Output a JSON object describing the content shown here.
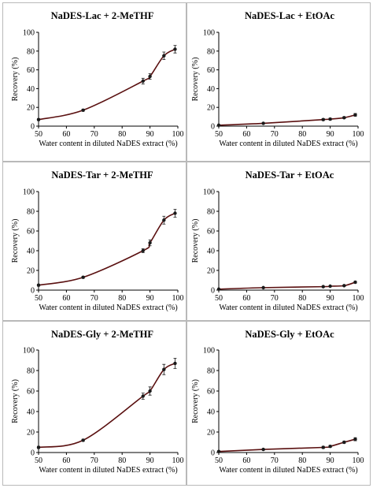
{
  "chart_data": [
    {
      "type": "line",
      "title": "NaDES-Lac + 2-MeTHF",
      "xlabel": "Water content in diluted NaDES extract (%)",
      "ylabel": "Recovery (%)",
      "xlim": [
        50,
        100
      ],
      "ylim": [
        0,
        100
      ],
      "xticks": [
        50,
        60,
        70,
        80,
        90,
        100
      ],
      "yticks": [
        0,
        20,
        40,
        60,
        80,
        100
      ],
      "grid": false,
      "series": [
        {
          "x": [
            50,
            66,
            87.5,
            90,
            95,
            99
          ],
          "y": [
            7,
            17,
            48,
            53,
            75,
            82
          ],
          "err": [
            1,
            1,
            3,
            3,
            4,
            4
          ]
        }
      ]
    },
    {
      "type": "line",
      "title": "NaDES-Lac + EtOAc",
      "xlabel": "Water content in diluted NaDES extract (%)",
      "ylabel": "Recovery (%)",
      "xlim": [
        50,
        100
      ],
      "ylim": [
        0,
        100
      ],
      "xticks": [
        50,
        60,
        70,
        80,
        90,
        100
      ],
      "yticks": [
        0,
        20,
        40,
        60,
        80,
        100
      ],
      "grid": false,
      "series": [
        {
          "x": [
            50,
            66,
            87.5,
            90,
            95,
            99
          ],
          "y": [
            1,
            3,
            7,
            7.5,
            9,
            12
          ],
          "err": [
            0.5,
            0.5,
            1,
            1,
            1,
            1.5
          ]
        }
      ]
    },
    {
      "type": "line",
      "title": "NaDES-Tar + 2-MeTHF",
      "xlabel": "Water content in diluted NaDES extract (%)",
      "ylabel": "Recovery (%)",
      "xlim": [
        50,
        100
      ],
      "ylim": [
        0,
        100
      ],
      "xticks": [
        50,
        60,
        70,
        80,
        90,
        100
      ],
      "yticks": [
        0,
        20,
        40,
        60,
        80,
        100
      ],
      "grid": false,
      "series": [
        {
          "x": [
            50,
            66,
            87.5,
            90,
            95,
            99
          ],
          "y": [
            5,
            13,
            40,
            48,
            71,
            78
          ],
          "err": [
            1,
            1,
            2,
            3,
            4,
            4
          ]
        }
      ]
    },
    {
      "type": "line",
      "title": "NaDES-Tar + EtOAc",
      "xlabel": "Water content in diluted NaDES extract (%)",
      "ylabel": "Recovery (%)",
      "xlim": [
        50,
        100
      ],
      "ylim": [
        0,
        100
      ],
      "xticks": [
        50,
        60,
        70,
        80,
        90,
        100
      ],
      "yticks": [
        0,
        20,
        40,
        60,
        80,
        100
      ],
      "grid": false,
      "series": [
        {
          "x": [
            50,
            66,
            87.5,
            90,
            95,
            99
          ],
          "y": [
            1,
            2.5,
            3.5,
            4,
            4.5,
            8
          ],
          "err": [
            0.3,
            0.5,
            0.5,
            0.5,
            0.7,
            1
          ]
        }
      ]
    },
    {
      "type": "line",
      "title": "NaDES-Gly + 2-MeTHF",
      "xlabel": "Water content in diluted NaDES extract (%)",
      "ylabel": "Recovery (%)",
      "xlim": [
        50,
        100
      ],
      "ylim": [
        0,
        100
      ],
      "xticks": [
        50,
        60,
        70,
        80,
        90,
        100
      ],
      "yticks": [
        0,
        20,
        40,
        60,
        80,
        100
      ],
      "grid": false,
      "series": [
        {
          "x": [
            50,
            66,
            87.5,
            90,
            95,
            99
          ],
          "y": [
            5,
            12,
            55,
            60,
            81,
            87
          ],
          "err": [
            1,
            1,
            3,
            4,
            5,
            5
          ]
        }
      ]
    },
    {
      "type": "line",
      "title": "NaDES-Gly + EtOAc",
      "xlabel": "Water content in diluted NaDES extract (%)",
      "ylabel": "Recovery (%)",
      "xlim": [
        50,
        100
      ],
      "ylim": [
        0,
        100
      ],
      "xticks": [
        50,
        60,
        70,
        80,
        90,
        100
      ],
      "yticks": [
        0,
        20,
        40,
        60,
        80,
        100
      ],
      "grid": false,
      "series": [
        {
          "x": [
            50,
            66,
            87.5,
            90,
            95,
            99
          ],
          "y": [
            1,
            3,
            5,
            6,
            10,
            13
          ],
          "err": [
            0.5,
            0.5,
            1,
            1,
            1,
            1.5
          ]
        }
      ]
    }
  ],
  "colors": {
    "line": "#5a1010",
    "marker": "#1a1a1a",
    "axis": "#000000",
    "border": "#b9b9b9"
  }
}
